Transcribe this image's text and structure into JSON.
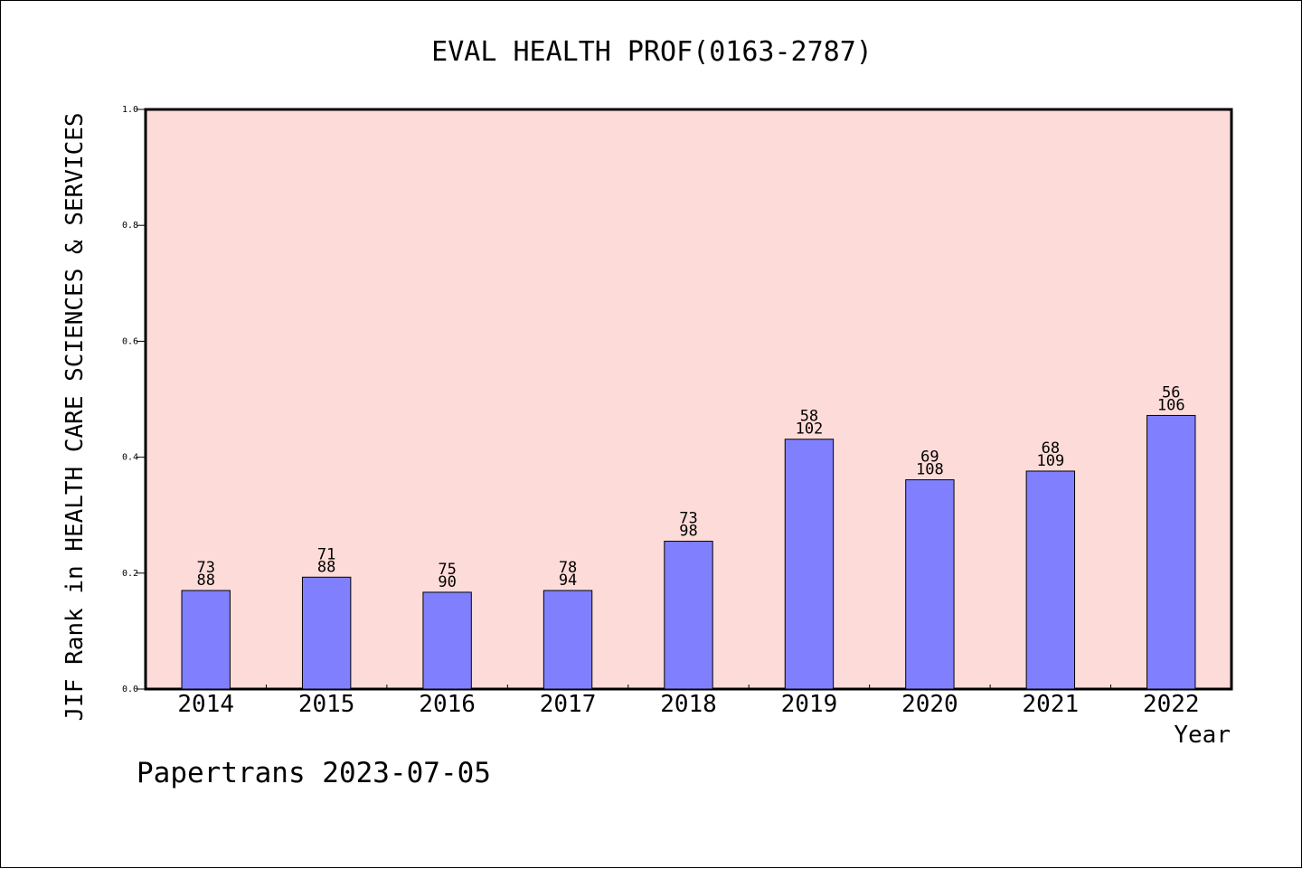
{
  "chart_data": {
    "type": "bar",
    "title": "EVAL HEALTH PROF(0163-2787)",
    "xlabel": "Year",
    "ylabel": "JIF Rank in HEALTH CARE SCIENCES & SERVICES",
    "categories": [
      "2014",
      "2015",
      "2016",
      "2017",
      "2018",
      "2019",
      "2020",
      "2021",
      "2022"
    ],
    "values": [
      0.17,
      0.193,
      0.167,
      0.17,
      0.255,
      0.431,
      0.361,
      0.376,
      0.472
    ],
    "rank": [
      "73",
      "71",
      "75",
      "78",
      "73",
      "58",
      "69",
      "68",
      "56"
    ],
    "total": [
      "88",
      "88",
      "90",
      "94",
      "98",
      "102",
      "108",
      "109",
      "106"
    ],
    "ylim": [
      0,
      1.0
    ],
    "yticks": [
      "0.0",
      "0.2",
      "0.4",
      "0.6",
      "0.8",
      "1.0"
    ],
    "grid": false,
    "colors": {
      "plot_background": "#fddbd8",
      "bar_fill": "#8080ff",
      "bar_stroke": "#000000"
    }
  },
  "footer": "Papertrans 2023-07-05"
}
